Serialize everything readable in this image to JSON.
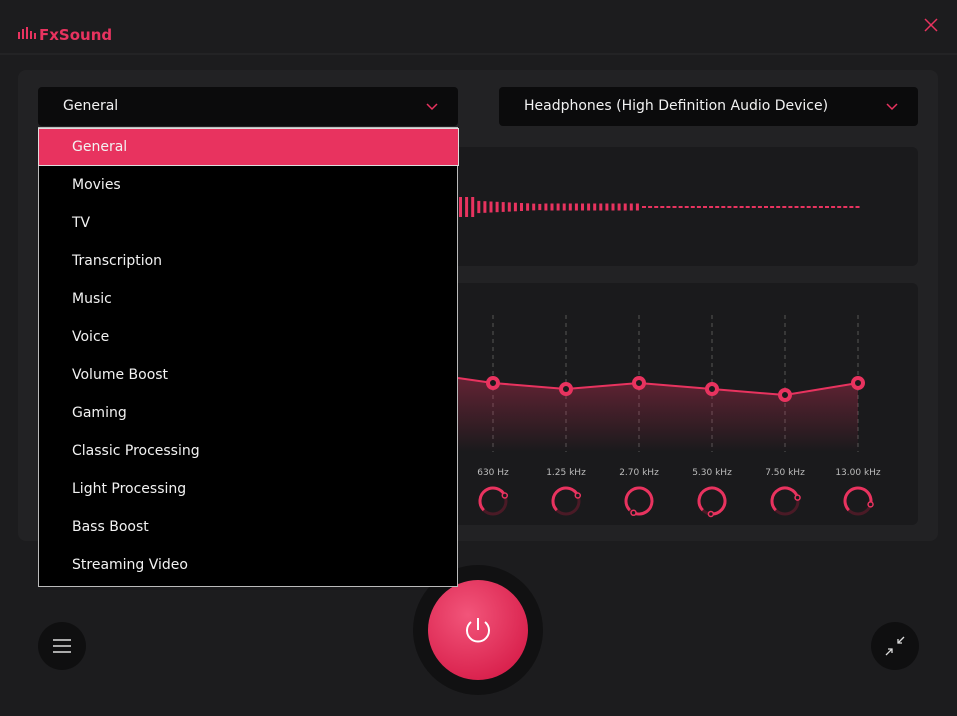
{
  "app": {
    "logo": "FxSound"
  },
  "preset_dropdown": {
    "selected": "General",
    "options": [
      "General",
      "Movies",
      "TV",
      "Transcription",
      "Music",
      "Voice",
      "Volume Boost",
      "Gaming",
      "Classic Processing",
      "Light Processing",
      "Bass Boost",
      "Streaming Video"
    ]
  },
  "device_dropdown": {
    "selected": "Headphones (High Definition Audio Device)"
  },
  "equalizer": {
    "bands": [
      "630 Hz",
      "1.25 kHz",
      "2.70 kHz",
      "5.30 kHz",
      "7.50 kHz",
      "13.00 kHz"
    ]
  }
}
